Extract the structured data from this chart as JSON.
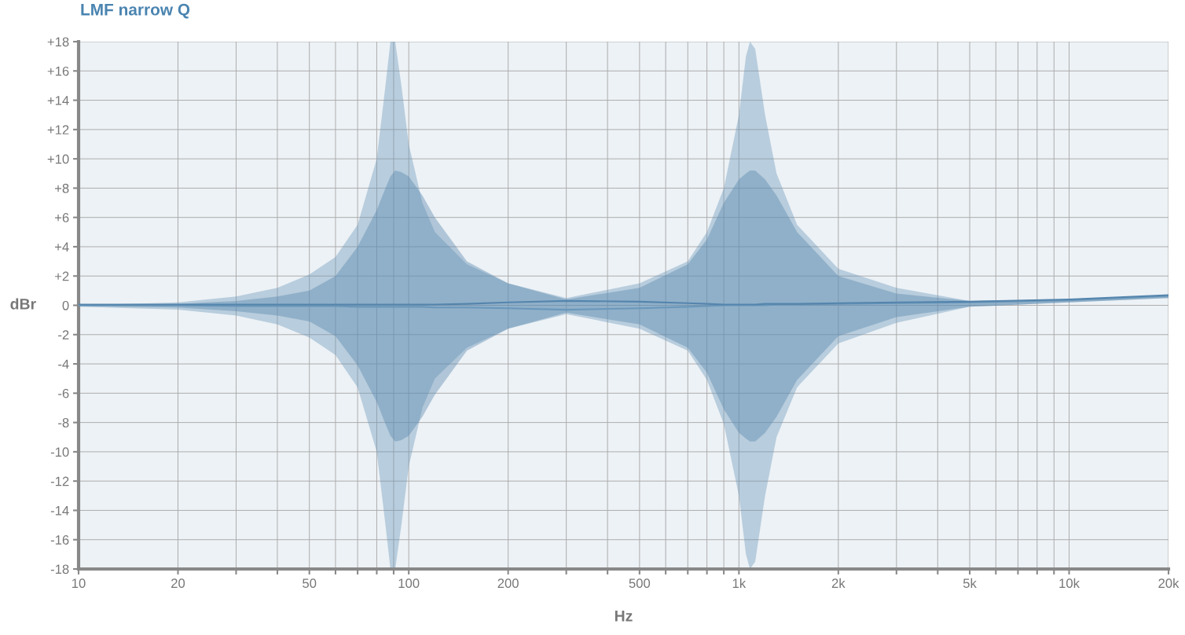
{
  "chart_data": {
    "type": "line",
    "title": "LMF narrow Q",
    "xlabel": "Hz",
    "ylabel": "dBr",
    "log": "x",
    "grid": true,
    "legend": false,
    "marker": "none",
    "line_style": "solid",
    "x": [
      10,
      20,
      30,
      40,
      50,
      60,
      70,
      80,
      85,
      88,
      91,
      95,
      100,
      110,
      120,
      150,
      200,
      300,
      500,
      700,
      800,
      900,
      1000,
      1050,
      1080,
      1120,
      1200,
      1300,
      1500,
      2000,
      3000,
      5000,
      10000,
      20000
    ],
    "series": [
      {
        "color": "#6a97ba",
        "values": [
          0,
          0,
          -0.05,
          -0.05,
          -0.05,
          -0.05,
          -0.1,
          -0.1,
          -0.1,
          -0.1,
          -0.1,
          -0.1,
          -0.1,
          -0.1,
          -0.15,
          -0.15,
          -0.2,
          -0.3,
          -0.2,
          -0.1,
          -0.05,
          0,
          0,
          0,
          0,
          0,
          0,
          0.05,
          0.05,
          0.1,
          0.15,
          0.2,
          0.35,
          0.65
        ],
        "upper": [
          0,
          0.2,
          0.6,
          1.2,
          2.1,
          3.3,
          5.5,
          10,
          15,
          18,
          18,
          15,
          11,
          7,
          5,
          2.8,
          1.5,
          0.5,
          1.5,
          3,
          5,
          8,
          13,
          17,
          18,
          17.5,
          13,
          9,
          5.5,
          2.5,
          1.2,
          0.3,
          0.4,
          0.7
        ],
        "lower": [
          -0.1,
          -0.3,
          -0.7,
          -1.3,
          -2.2,
          -3.4,
          -5.6,
          -10,
          -15,
          -18,
          -18,
          -15,
          -11,
          -7,
          -5,
          -2.9,
          -1.6,
          -0.6,
          -1.6,
          -3.1,
          -5.1,
          -8.1,
          -13,
          -17,
          -18,
          -17.5,
          -13,
          -9,
          -5.6,
          -2.6,
          -1.2,
          -0.1,
          0.2,
          0.5
        ]
      },
      {
        "color": "#5585ad",
        "values": [
          0.05,
          0.05,
          0.05,
          0.05,
          0.05,
          0.05,
          0.05,
          0.05,
          0.05,
          0.05,
          0.05,
          0.05,
          0.05,
          0.05,
          0.05,
          0.1,
          0.2,
          0.3,
          0.25,
          0.15,
          0.1,
          0.05,
          0.05,
          0.05,
          0.05,
          0.05,
          0.1,
          0.1,
          0.1,
          0.15,
          0.2,
          0.25,
          0.4,
          0.7
        ],
        "upper": [
          0,
          0.1,
          0.3,
          0.6,
          1,
          2,
          4,
          6.5,
          8,
          8.8,
          9.2,
          9.1,
          8.8,
          7.5,
          6,
          3,
          1.5,
          0.4,
          1.2,
          2.8,
          4.5,
          7,
          8.6,
          9,
          9.2,
          9.2,
          8.6,
          7.5,
          5,
          2,
          0.8,
          0.3,
          0.4,
          0.7
        ],
        "lower": [
          -0.05,
          -0.15,
          -0.4,
          -0.7,
          -1.1,
          -2.1,
          -4.1,
          -6.6,
          -8.1,
          -8.9,
          -9.3,
          -9.2,
          -8.9,
          -7.6,
          -6.1,
          -3.1,
          -1.6,
          -0.5,
          -1.3,
          -2.9,
          -4.6,
          -7.1,
          -8.7,
          -9.1,
          -9.3,
          -9.3,
          -8.7,
          -7.6,
          -5.1,
          -2.1,
          -0.8,
          -0.1,
          0.2,
          0.5
        ]
      }
    ],
    "xlim": [
      10,
      20000
    ],
    "xticks": [
      10,
      20,
      {
        "value": 30,
        "label": null
      },
      {
        "value": 40,
        "label": null
      },
      50,
      {
        "value": 60,
        "label": null
      },
      {
        "value": 70,
        "label": null
      },
      {
        "value": 80,
        "label": null
      },
      {
        "value": 90,
        "label": null
      },
      100,
      200,
      {
        "value": 300,
        "label": null
      },
      {
        "value": 400,
        "label": null
      },
      500,
      {
        "value": 600,
        "label": null
      },
      {
        "value": 700,
        "label": null
      },
      {
        "value": 800,
        "label": null
      },
      {
        "value": 900,
        "label": null
      },
      {
        "value": 1000,
        "label": "1k"
      },
      {
        "value": 2000,
        "label": "2k"
      },
      {
        "value": 3000,
        "label": null
      },
      {
        "value": 4000,
        "label": null
      },
      {
        "value": 5000,
        "label": "5k"
      },
      {
        "value": 6000,
        "label": null
      },
      {
        "value": 7000,
        "label": null
      },
      {
        "value": 8000,
        "label": null
      },
      {
        "value": 9000,
        "label": null
      },
      {
        "value": 10000,
        "label": "10k"
      },
      {
        "value": 20000,
        "label": "20k"
      }
    ],
    "ylim": [
      -18,
      18
    ],
    "yticks": [
      {
        "value": -18,
        "label": "-18"
      },
      {
        "value": -16,
        "label": "-16"
      },
      {
        "value": -14,
        "label": "-14"
      },
      {
        "value": -12,
        "label": "-12"
      },
      {
        "value": -10,
        "label": "-10"
      },
      {
        "value": -8,
        "label": "-8"
      },
      {
        "value": -6,
        "label": "-6"
      },
      {
        "value": -4,
        "label": "-4"
      },
      {
        "value": -2,
        "label": "-2"
      },
      0,
      {
        "value": 2,
        "label": "+2"
      },
      {
        "value": 4,
        "label": "+4"
      },
      {
        "value": 6,
        "label": "+6"
      },
      {
        "value": 8,
        "label": "+8"
      },
      {
        "value": 10,
        "label": "+10"
      },
      {
        "value": 12,
        "label": "+12"
      },
      {
        "value": 14,
        "label": "+14"
      },
      {
        "value": 16,
        "label": "+16"
      },
      {
        "value": 18,
        "label": "+18"
      }
    ]
  }
}
